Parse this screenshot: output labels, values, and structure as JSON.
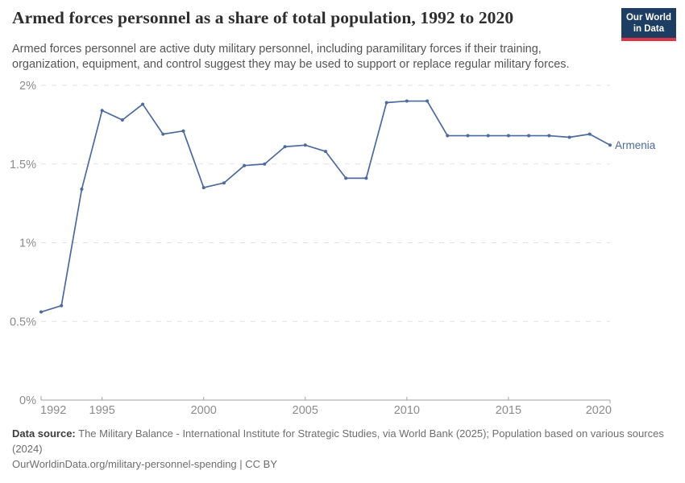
{
  "header": {
    "title": "Armed forces personnel as a share of total population, 1992 to 2020",
    "subtitle_line1": "Armed forces personnel are active duty military personnel, including paramilitary forces if their training,",
    "subtitle_line2": "organization, equipment, and control suggest they may be used to support or replace regular military forces.",
    "logo": {
      "line1": "Our World",
      "line2": "in Data",
      "bg_color": "#1d3d63",
      "accent_color": "#dc3545"
    }
  },
  "chart_data": {
    "type": "line",
    "title": "Armed forces personnel as a share of total population, 1992 to 2020",
    "unit": "%",
    "x": [
      1992,
      1993,
      1994,
      1995,
      1996,
      1997,
      1998,
      1999,
      2000,
      2001,
      2002,
      2003,
      2004,
      2005,
      2006,
      2007,
      2008,
      2009,
      2010,
      2011,
      2012,
      2013,
      2014,
      2015,
      2016,
      2017,
      2018,
      2019,
      2020
    ],
    "series": [
      {
        "name": "Armenia",
        "color": "#4c6a9c",
        "values": [
          0.56,
          0.6,
          1.34,
          1.84,
          1.78,
          1.88,
          1.69,
          1.71,
          1.35,
          1.38,
          1.49,
          1.5,
          1.61,
          1.62,
          1.58,
          1.41,
          1.41,
          1.89,
          1.9,
          1.9,
          1.68,
          1.68,
          1.68,
          1.68,
          1.68,
          1.68,
          1.67,
          1.69,
          1.62
        ]
      }
    ],
    "end_label": "Armenia",
    "xlim": [
      1992,
      2020
    ],
    "ylim": [
      0,
      2
    ],
    "x_ticks": [
      1992,
      1995,
      2000,
      2005,
      2010,
      2015,
      2020
    ],
    "y_ticks": [
      {
        "value": 0,
        "label": "0%"
      },
      {
        "value": 0.5,
        "label": "0.5%"
      },
      {
        "value": 1,
        "label": "1%"
      },
      {
        "value": 1.5,
        "label": "1.5%"
      },
      {
        "value": 2,
        "label": "2%"
      }
    ],
    "grid": "horizontal-dashed",
    "grid_color": "#e2e2e2",
    "axis_color": "#a1a1a1",
    "tick_label_color": "#8c8c8c",
    "legend_position": "end-of-line"
  },
  "footer": {
    "source_bold": "Data source:",
    "source_rest": " The Military Balance - International Institute for Strategic Studies, via World Bank (2025); Population based on various sources",
    "source_line2": "(2024)",
    "citation": "OurWorldinData.org/military-personnel-spending | CC BY"
  }
}
